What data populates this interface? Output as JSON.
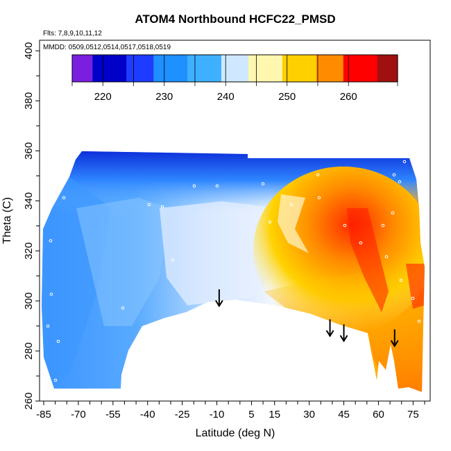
{
  "chart_data": {
    "type": "heatmap",
    "title": "ATOM4 Northbound HCFC22_PMSD",
    "flights_note": "Flts: 7,8,9,10,11,12",
    "dates_note": "MMDD: 0509,0512,0514,0517,0518,0519",
    "xlabel": "Latitude (deg N)",
    "ylabel": "Theta (C)",
    "xlim": [
      -87,
      85
    ],
    "ylim": [
      260,
      405
    ],
    "x_ticks": [
      -85,
      -70,
      -55,
      -40,
      -25,
      -10,
      5,
      15,
      30,
      45,
      60,
      75
    ],
    "y_ticks": [
      260,
      280,
      300,
      320,
      340,
      360,
      380,
      400
    ],
    "colorbar": {
      "range": [
        215,
        268
      ],
      "ticks": [
        220,
        230,
        240,
        250,
        260
      ],
      "boundaries": [
        215,
        220,
        225,
        230,
        235,
        240,
        245,
        250,
        255,
        260,
        268
      ],
      "colors": [
        "#7a1fe0",
        "#0000c8",
        "#1e3cff",
        "#1e90ff",
        "#3fb0ff",
        "#cfe8ff",
        "#fff6b0",
        "#ffd000",
        "#ff8c00",
        "#ff0000",
        "#a01010"
      ]
    },
    "arrows_lat": [
      -9,
      39,
      45,
      67
    ],
    "arrow_tip_theta": [
      298,
      286,
      284,
      282
    ]
  }
}
